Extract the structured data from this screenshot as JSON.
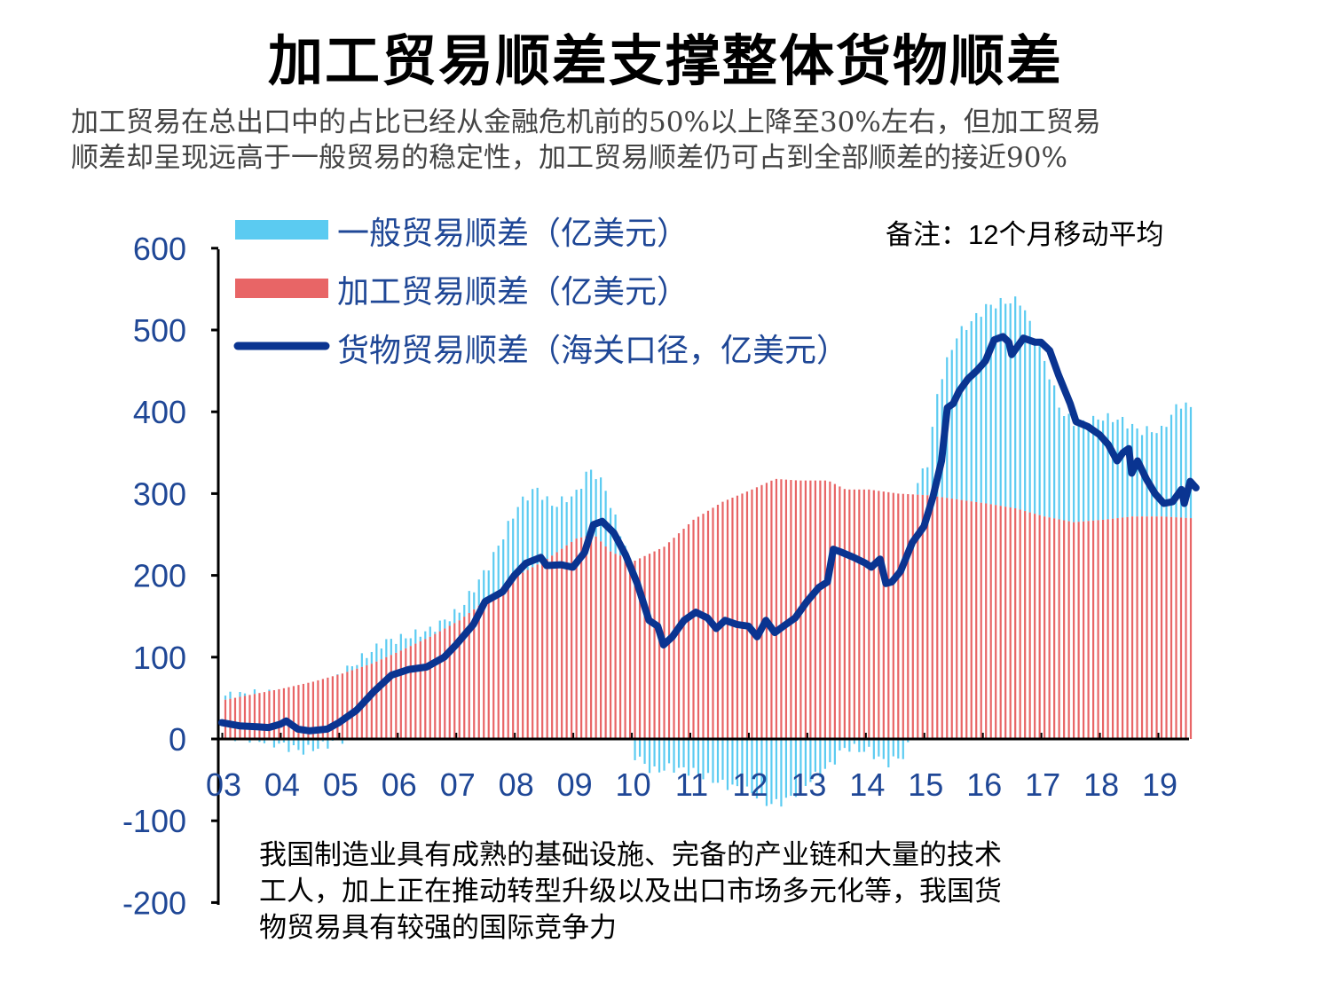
{
  "title": "加工贸易顺差支撑整体货物顺差",
  "subtitle_lines": [
    "加工贸易在总出口中的占比已经从金融危机前的50%以上降至30%左右，但加工贸易",
    "顺差却呈现远高于一般贸易的稳定性，加工贸易顺差仍可占到全部顺差的接近90%"
  ],
  "note_lines": [
    "我国制造业具有成熟的基础设施、完备的产业链和大量的技术",
    "工人，加上正在推动转型升级以及出口市场多元化等，我国货",
    "物贸易具有较强的国际竞争力"
  ],
  "chart_data": {
    "type": "bar",
    "annotation": "备注：12个月移动平均",
    "ylim": [
      -200,
      600
    ],
    "yticks": [
      600,
      500,
      400,
      300,
      200,
      100,
      0,
      -100,
      -200
    ],
    "xticks": [
      "03",
      "04",
      "05",
      "06",
      "07",
      "08",
      "09",
      "10",
      "11",
      "12",
      "13",
      "14",
      "15",
      "16",
      "17",
      "18",
      "19"
    ],
    "x_start": 2003.0,
    "x_end": 2019.5,
    "colors": {
      "general": "#5bcbf1",
      "processing": "#e86566",
      "total": "#0a3491",
      "axis_text": "#1f4796"
    },
    "legend": {
      "general": "一般贸易顺差（亿美元）",
      "processing": "加工贸易顺差（亿美元）",
      "total": "货物贸易顺差（海关口径，亿美元）"
    },
    "processing_surplus": [
      [
        2003.0,
        48
      ],
      [
        2003.5,
        55
      ],
      [
        2004.0,
        62
      ],
      [
        2004.5,
        70
      ],
      [
        2005.0,
        80
      ],
      [
        2005.5,
        92
      ],
      [
        2006.0,
        108
      ],
      [
        2006.5,
        125
      ],
      [
        2007.0,
        145
      ],
      [
        2007.5,
        172
      ],
      [
        2008.0,
        200
      ],
      [
        2008.5,
        220
      ],
      [
        2009.0,
        245
      ],
      [
        2009.3,
        250
      ],
      [
        2009.6,
        228
      ],
      [
        2010.0,
        218
      ],
      [
        2010.5,
        235
      ],
      [
        2011.0,
        268
      ],
      [
        2011.5,
        290
      ],
      [
        2012.0,
        305
      ],
      [
        2012.4,
        318
      ],
      [
        2012.8,
        316
      ],
      [
        2013.0,
        316
      ],
      [
        2013.3,
        316
      ],
      [
        2013.6,
        305
      ],
      [
        2014.0,
        305
      ],
      [
        2014.5,
        300
      ],
      [
        2015.0,
        298
      ],
      [
        2015.5,
        293
      ],
      [
        2016.0,
        288
      ],
      [
        2016.5,
        282
      ],
      [
        2017.0,
        272
      ],
      [
        2017.5,
        265
      ],
      [
        2018.0,
        268
      ],
      [
        2018.5,
        272
      ],
      [
        2019.0,
        272
      ],
      [
        2019.5,
        270
      ]
    ],
    "general_surplus": [
      [
        2003.0,
        5
      ],
      [
        2003.5,
        0
      ],
      [
        2004.0,
        -8
      ],
      [
        2004.3,
        -15
      ],
      [
        2004.6,
        -10
      ],
      [
        2005.0,
        0
      ],
      [
        2005.3,
        10
      ],
      [
        2005.7,
        20
      ],
      [
        2006.0,
        15
      ],
      [
        2006.5,
        8
      ],
      [
        2007.0,
        12
      ],
      [
        2007.5,
        40
      ],
      [
        2008.0,
        85
      ],
      [
        2008.3,
        95
      ],
      [
        2008.6,
        60
      ],
      [
        2009.0,
        55
      ],
      [
        2009.2,
        80
      ],
      [
        2009.5,
        70
      ],
      [
        2009.8,
        20
      ],
      [
        2010.0,
        -20
      ],
      [
        2010.3,
        -40
      ],
      [
        2010.6,
        -35
      ],
      [
        2011.0,
        -40
      ],
      [
        2011.5,
        -55
      ],
      [
        2012.0,
        -65
      ],
      [
        2012.3,
        -80
      ],
      [
        2012.6,
        -75
      ],
      [
        2013.0,
        -50
      ],
      [
        2013.3,
        -35
      ],
      [
        2013.6,
        -10
      ],
      [
        2014.0,
        -15
      ],
      [
        2014.3,
        -30
      ],
      [
        2014.6,
        -20
      ],
      [
        2015.0,
        40
      ],
      [
        2015.2,
        140
      ],
      [
        2015.5,
        200
      ],
      [
        2016.0,
        240
      ],
      [
        2016.3,
        250
      ],
      [
        2016.6,
        255
      ],
      [
        2017.0,
        190
      ],
      [
        2017.3,
        130
      ],
      [
        2017.6,
        120
      ],
      [
        2018.0,
        125
      ],
      [
        2018.3,
        120
      ],
      [
        2018.6,
        105
      ],
      [
        2019.0,
        105
      ],
      [
        2019.3,
        140
      ],
      [
        2019.5,
        135
      ]
    ],
    "goods_trade_surplus": [
      [
        2003.0,
        20
      ],
      [
        2003.3,
        16
      ],
      [
        2003.6,
        15
      ],
      [
        2003.8,
        14
      ],
      [
        2004.0,
        18
      ],
      [
        2004.1,
        22
      ],
      [
        2004.3,
        12
      ],
      [
        2004.5,
        10
      ],
      [
        2004.8,
        12
      ],
      [
        2005.0,
        20
      ],
      [
        2005.3,
        35
      ],
      [
        2005.6,
        58
      ],
      [
        2005.9,
        78
      ],
      [
        2006.2,
        85
      ],
      [
        2006.5,
        88
      ],
      [
        2006.8,
        100
      ],
      [
        2007.0,
        115
      ],
      [
        2007.3,
        140
      ],
      [
        2007.5,
        168
      ],
      [
        2007.8,
        180
      ],
      [
        2008.0,
        200
      ],
      [
        2008.2,
        215
      ],
      [
        2008.45,
        222
      ],
      [
        2008.55,
        212
      ],
      [
        2008.8,
        213
      ],
      [
        2009.0,
        210
      ],
      [
        2009.2,
        228
      ],
      [
        2009.35,
        262
      ],
      [
        2009.5,
        266
      ],
      [
        2009.7,
        252
      ],
      [
        2009.9,
        225
      ],
      [
        2010.1,
        190
      ],
      [
        2010.3,
        145
      ],
      [
        2010.45,
        138
      ],
      [
        2010.55,
        115
      ],
      [
        2010.7,
        125
      ],
      [
        2010.9,
        145
      ],
      [
        2011.1,
        155
      ],
      [
        2011.3,
        148
      ],
      [
        2011.45,
        135
      ],
      [
        2011.6,
        145
      ],
      [
        2011.8,
        140
      ],
      [
        2012.0,
        138
      ],
      [
        2012.15,
        125
      ],
      [
        2012.3,
        145
      ],
      [
        2012.45,
        130
      ],
      [
        2012.6,
        138
      ],
      [
        2012.8,
        148
      ],
      [
        2013.0,
        168
      ],
      [
        2013.2,
        185
      ],
      [
        2013.35,
        192
      ],
      [
        2013.45,
        232
      ],
      [
        2013.6,
        228
      ],
      [
        2013.8,
        222
      ],
      [
        2014.0,
        215
      ],
      [
        2014.1,
        210
      ],
      [
        2014.25,
        220
      ],
      [
        2014.35,
        190
      ],
      [
        2014.45,
        192
      ],
      [
        2014.6,
        205
      ],
      [
        2014.8,
        240
      ],
      [
        2015.0,
        260
      ],
      [
        2015.15,
        295
      ],
      [
        2015.3,
        340
      ],
      [
        2015.4,
        405
      ],
      [
        2015.5,
        410
      ],
      [
        2015.6,
        425
      ],
      [
        2015.75,
        440
      ],
      [
        2015.9,
        450
      ],
      [
        2016.05,
        462
      ],
      [
        2016.2,
        488
      ],
      [
        2016.35,
        492
      ],
      [
        2016.45,
        485
      ],
      [
        2016.5,
        470
      ],
      [
        2016.7,
        490
      ],
      [
        2016.9,
        485
      ],
      [
        2017.0,
        485
      ],
      [
        2017.15,
        475
      ],
      [
        2017.3,
        445
      ],
      [
        2017.5,
        410
      ],
      [
        2017.6,
        388
      ],
      [
        2017.8,
        382
      ],
      [
        2018.0,
        372
      ],
      [
        2018.15,
        360
      ],
      [
        2018.3,
        340
      ],
      [
        2018.4,
        350
      ],
      [
        2018.5,
        355
      ],
      [
        2018.55,
        325
      ],
      [
        2018.65,
        340
      ],
      [
        2018.8,
        318
      ],
      [
        2018.95,
        300
      ],
      [
        2019.1,
        288
      ],
      [
        2019.25,
        290
      ],
      [
        2019.4,
        305
      ],
      [
        2019.45,
        288
      ],
      [
        2019.55,
        315
      ],
      [
        2019.65,
        307
      ]
    ]
  }
}
